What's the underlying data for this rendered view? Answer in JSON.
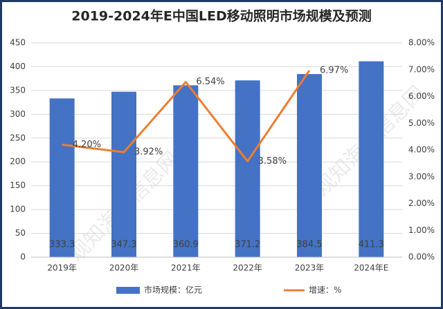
{
  "chart_data": {
    "type": "bar_line",
    "title": "2019-2024年E中国LED移动照明市场规模及预测",
    "watermark": "观知海内信息网",
    "categories": [
      "2019年",
      "2020年",
      "2021年",
      "2022年",
      "2023年",
      "2024年E"
    ],
    "series": [
      {
        "name": "市场规模：亿元",
        "type": "bar",
        "color": "#4472c4",
        "values": [
          333.3,
          347.3,
          360.9,
          371.2,
          384.5,
          411.3
        ]
      },
      {
        "name": "增速：%",
        "type": "line",
        "axis": "y2",
        "color": "#ed7d31",
        "values": [
          4.2,
          3.92,
          6.54,
          3.58,
          6.97,
          null
        ],
        "value_labels": [
          "4.20%",
          "3.92%",
          "6.54%",
          "3.58%",
          "6.97%",
          null
        ]
      }
    ],
    "ylim": [
      0,
      450
    ],
    "yticks": [
      0,
      50,
      100,
      150,
      200,
      250,
      300,
      350,
      400,
      450
    ],
    "y2lim": [
      0,
      8
    ],
    "y2ticks": [
      {
        "value": 0,
        "label": "0.00%"
      },
      {
        "value": 1,
        "label": "1.00%"
      },
      {
        "value": 2,
        "label": "2.00%"
      },
      {
        "value": 3,
        "label": "3.00%"
      },
      {
        "value": 4,
        "label": "4.00%"
      },
      {
        "value": 5,
        "label": "5.00%"
      },
      {
        "value": 6,
        "label": "6.00%"
      },
      {
        "value": 7,
        "label": "7.00%"
      },
      {
        "value": 8,
        "label": "8.00%"
      }
    ],
    "grid": true,
    "legend": "bottom"
  }
}
